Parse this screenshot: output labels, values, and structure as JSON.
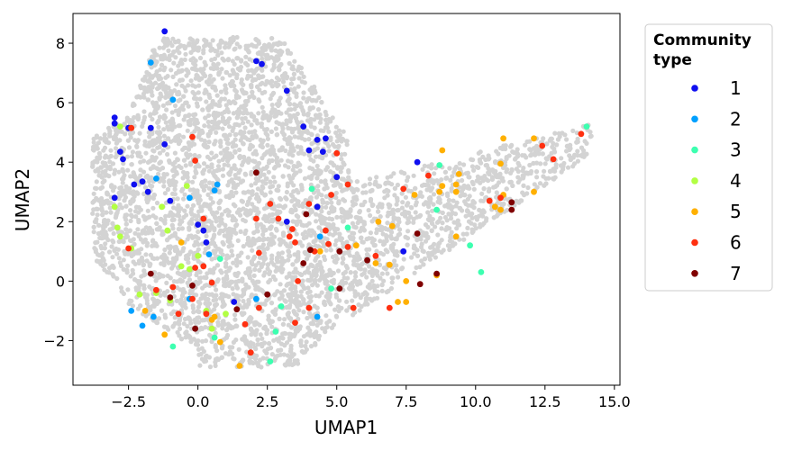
{
  "chart_data": {
    "type": "scatter",
    "xlabel": "UMAP1",
    "ylabel": "UMAP2",
    "xlim": [
      -4.5,
      15.2
    ],
    "ylim": [
      -3.5,
      9.0
    ],
    "xticks": [
      -2.5,
      0.0,
      2.5,
      5.0,
      7.5,
      10.0,
      12.5,
      15.0
    ],
    "xtick_labels": [
      "−2.5",
      "0.0",
      "2.5",
      "5.0",
      "7.5",
      "10.0",
      "12.5",
      "15.0"
    ],
    "yticks": [
      -2,
      0,
      2,
      4,
      6,
      8
    ],
    "ytick_labels": [
      "−2",
      "0",
      "2",
      "4",
      "6",
      "8"
    ],
    "grid": false,
    "background_color": "#d3d3d3",
    "legend": {
      "title_lines": [
        "Community",
        "type"
      ],
      "placement": "outside-right-top",
      "entries": [
        {
          "label": "1",
          "color": "#1010f0"
        },
        {
          "label": "2",
          "color": "#00a0ff"
        },
        {
          "label": "3",
          "color": "#3dffb0"
        },
        {
          "label": "4",
          "color": "#b2ff43"
        },
        {
          "label": "5",
          "color": "#ffb000"
        },
        {
          "label": "6",
          "color": "#ff3010"
        },
        {
          "label": "7",
          "color": "#800000"
        }
      ]
    },
    "series": [
      {
        "color": "#1010f0",
        "points": [
          [
            -1.2,
            8.4
          ],
          [
            2.1,
            7.4
          ],
          [
            2.3,
            7.3
          ],
          [
            3.2,
            6.4
          ],
          [
            -3.0,
            5.5
          ],
          [
            -3.0,
            5.3
          ],
          [
            -2.5,
            5.15
          ],
          [
            -1.7,
            5.15
          ],
          [
            -1.2,
            4.6
          ],
          [
            -2.8,
            4.35
          ],
          [
            -2.7,
            4.1
          ],
          [
            3.8,
            5.2
          ],
          [
            4.3,
            4.75
          ],
          [
            4.6,
            4.8
          ],
          [
            4.0,
            4.4
          ],
          [
            4.5,
            4.35
          ],
          [
            5.0,
            3.5
          ],
          [
            7.9,
            4.0
          ],
          [
            -2.3,
            3.25
          ],
          [
            -2.0,
            3.35
          ],
          [
            -1.8,
            3.0
          ],
          [
            -3.0,
            2.8
          ],
          [
            -1.0,
            2.7
          ],
          [
            4.3,
            2.5
          ],
          [
            3.2,
            2.0
          ],
          [
            0.0,
            1.9
          ],
          [
            0.2,
            1.7
          ],
          [
            0.3,
            1.3
          ],
          [
            7.4,
            1.0
          ],
          [
            1.3,
            -0.7
          ]
        ]
      },
      {
        "color": "#00a0ff",
        "points": [
          [
            -1.7,
            7.35
          ],
          [
            -0.9,
            6.1
          ],
          [
            -1.5,
            3.45
          ],
          [
            0.6,
            3.05
          ],
          [
            0.7,
            3.25
          ],
          [
            -0.3,
            2.8
          ],
          [
            4.4,
            1.5
          ],
          [
            0.4,
            0.9
          ],
          [
            -0.3,
            -0.6
          ],
          [
            -2.4,
            -1.0
          ],
          [
            -1.6,
            -1.2
          ],
          [
            -2.0,
            -1.5
          ],
          [
            4.3,
            -1.2
          ],
          [
            2.1,
            -0.6
          ]
        ]
      },
      {
        "color": "#3dffb0",
        "points": [
          [
            14.0,
            5.2
          ],
          [
            8.7,
            3.9
          ],
          [
            4.1,
            3.1
          ],
          [
            8.6,
            2.4
          ],
          [
            5.4,
            1.8
          ],
          [
            9.8,
            1.2
          ],
          [
            10.2,
            0.3
          ],
          [
            4.8,
            -0.25
          ],
          [
            3.0,
            -0.85
          ],
          [
            2.8,
            -1.7
          ],
          [
            2.6,
            -2.7
          ],
          [
            0.6,
            -1.9
          ],
          [
            0.8,
            0.75
          ],
          [
            -0.9,
            -2.2
          ]
        ]
      },
      {
        "color": "#b2ff43",
        "points": [
          [
            -2.8,
            5.2
          ],
          [
            -3.0,
            2.5
          ],
          [
            -1.3,
            2.5
          ],
          [
            -0.4,
            3.2
          ],
          [
            -2.9,
            1.8
          ],
          [
            -2.8,
            1.5
          ],
          [
            -2.4,
            1.1
          ],
          [
            -1.1,
            1.7
          ],
          [
            -0.6,
            0.5
          ],
          [
            0.0,
            0.85
          ],
          [
            -0.3,
            0.4
          ],
          [
            -1.5,
            -0.4
          ],
          [
            -2.1,
            -0.45
          ],
          [
            -1.0,
            -0.65
          ],
          [
            0.3,
            -1.0
          ],
          [
            1.0,
            -1.1
          ],
          [
            0.5,
            -1.6
          ]
        ]
      },
      {
        "color": "#ffb000",
        "points": [
          [
            8.8,
            4.4
          ],
          [
            11.0,
            4.8
          ],
          [
            12.1,
            4.8
          ],
          [
            9.4,
            3.6
          ],
          [
            10.9,
            3.95
          ],
          [
            8.7,
            3.0
          ],
          [
            8.8,
            3.2
          ],
          [
            9.3,
            3.25
          ],
          [
            9.3,
            3.0
          ],
          [
            7.8,
            2.9
          ],
          [
            11.0,
            2.9
          ],
          [
            12.1,
            3.0
          ],
          [
            10.7,
            2.5
          ],
          [
            10.9,
            2.4
          ],
          [
            6.5,
            2.0
          ],
          [
            7.0,
            1.85
          ],
          [
            9.3,
            1.5
          ],
          [
            5.7,
            1.2
          ],
          [
            4.4,
            1.0
          ],
          [
            6.4,
            0.6
          ],
          [
            6.9,
            0.55
          ],
          [
            7.5,
            0.0
          ],
          [
            8.6,
            0.2
          ],
          [
            7.2,
            -0.7
          ],
          [
            7.5,
            -0.7
          ],
          [
            -0.6,
            1.3
          ],
          [
            -1.2,
            -1.8
          ],
          [
            -1.9,
            -1.0
          ],
          [
            0.5,
            -1.3
          ],
          [
            0.6,
            -1.2
          ],
          [
            0.8,
            -2.05
          ],
          [
            1.5,
            -2.85
          ]
        ]
      },
      {
        "color": "#ff3010",
        "points": [
          [
            -2.4,
            5.15
          ],
          [
            -0.2,
            4.85
          ],
          [
            -0.1,
            4.05
          ],
          [
            2.1,
            2.1
          ],
          [
            0.2,
            2.1
          ],
          [
            5.0,
            4.3
          ],
          [
            5.4,
            3.25
          ],
          [
            4.8,
            2.9
          ],
          [
            7.4,
            3.1
          ],
          [
            8.3,
            3.55
          ],
          [
            12.4,
            4.55
          ],
          [
            12.8,
            4.1
          ],
          [
            13.8,
            4.95
          ],
          [
            10.5,
            2.7
          ],
          [
            10.9,
            2.8
          ],
          [
            2.6,
            2.6
          ],
          [
            2.9,
            2.1
          ],
          [
            4.0,
            2.6
          ],
          [
            3.4,
            1.75
          ],
          [
            3.3,
            1.5
          ],
          [
            3.5,
            1.3
          ],
          [
            4.6,
            1.7
          ],
          [
            4.7,
            1.25
          ],
          [
            5.4,
            1.15
          ],
          [
            4.2,
            1.0
          ],
          [
            -2.5,
            1.1
          ],
          [
            2.2,
            0.95
          ],
          [
            0.2,
            0.5
          ],
          [
            -0.1,
            0.45
          ],
          [
            0.5,
            -0.05
          ],
          [
            6.4,
            0.85
          ],
          [
            3.6,
            0.0
          ],
          [
            -1.5,
            -0.3
          ],
          [
            -0.9,
            -0.2
          ],
          [
            -0.2,
            -0.6
          ],
          [
            2.2,
            -0.9
          ],
          [
            4.0,
            -0.9
          ],
          [
            5.6,
            -0.9
          ],
          [
            6.9,
            -0.9
          ],
          [
            -0.7,
            -1.1
          ],
          [
            0.3,
            -1.1
          ],
          [
            3.5,
            -1.4
          ],
          [
            1.7,
            -1.45
          ],
          [
            1.9,
            -2.4
          ]
        ]
      },
      {
        "color": "#800000",
        "points": [
          [
            2.1,
            3.65
          ],
          [
            3.9,
            2.25
          ],
          [
            7.9,
            1.6
          ],
          [
            11.3,
            2.65
          ],
          [
            11.3,
            2.4
          ],
          [
            4.05,
            1.05
          ],
          [
            5.1,
            1.0
          ],
          [
            3.8,
            0.6
          ],
          [
            6.1,
            0.7
          ],
          [
            8.6,
            0.25
          ],
          [
            -1.7,
            0.25
          ],
          [
            -0.2,
            -0.15
          ],
          [
            5.1,
            -0.25
          ],
          [
            8.0,
            -0.1
          ],
          [
            -1.0,
            -0.55
          ],
          [
            2.5,
            -0.45
          ],
          [
            1.4,
            -0.95
          ],
          [
            -0.1,
            -1.6
          ]
        ]
      }
    ]
  }
}
